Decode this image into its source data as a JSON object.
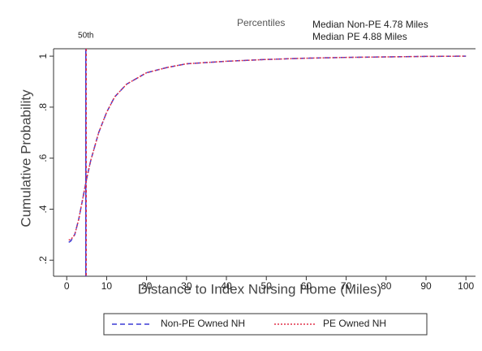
{
  "chart_data": {
    "type": "line",
    "xlabel": "Distance to Index Nursing Home (Miles)",
    "ylabel": "Cumulative Probability",
    "x": [
      0.5,
      1,
      2,
      3,
      4,
      5,
      6,
      8,
      10,
      12,
      15,
      20,
      25,
      30,
      40,
      50,
      60,
      70,
      80,
      90,
      100
    ],
    "series": [
      {
        "name": "Non-PE Owned NH",
        "color": "#3c3cd6",
        "dash": "6,4",
        "values": [
          0.27,
          0.275,
          0.3,
          0.36,
          0.44,
          0.52,
          0.59,
          0.7,
          0.78,
          0.84,
          0.89,
          0.935,
          0.955,
          0.97,
          0.98,
          0.987,
          0.992,
          0.995,
          0.997,
          0.999,
          1.0
        ]
      },
      {
        "name": "PE Owned NH",
        "color": "#e0304a",
        "dash": "2,2",
        "values": [
          0.28,
          0.28,
          0.3,
          0.36,
          0.44,
          0.52,
          0.59,
          0.7,
          0.78,
          0.84,
          0.89,
          0.935,
          0.955,
          0.97,
          0.98,
          0.987,
          0.992,
          0.995,
          0.997,
          0.999,
          1.0
        ]
      }
    ],
    "percentile_lines": {
      "label": "50th",
      "values": [
        4.78,
        4.88
      ],
      "colors": [
        "#3c3cd6",
        "#e0304a"
      ]
    },
    "annotations": [
      "Percentiles",
      "Median Non-PE 4.78 Miles",
      "Median PE 4.88 Miles"
    ],
    "xlim": [
      -3.3,
      102.4
    ],
    "xticks": [
      0,
      10,
      20,
      30,
      40,
      50,
      60,
      70,
      80,
      90,
      100
    ],
    "ylim": [
      0.137,
      1.029
    ],
    "yticks": [
      {
        "value": 0.2,
        "label": ".2"
      },
      {
        "value": 0.4,
        "label": ".4"
      },
      {
        "value": 0.6,
        "label": ".6"
      },
      {
        "value": 0.8,
        "label": ".8"
      },
      1
    ],
    "legend": "bottom"
  }
}
